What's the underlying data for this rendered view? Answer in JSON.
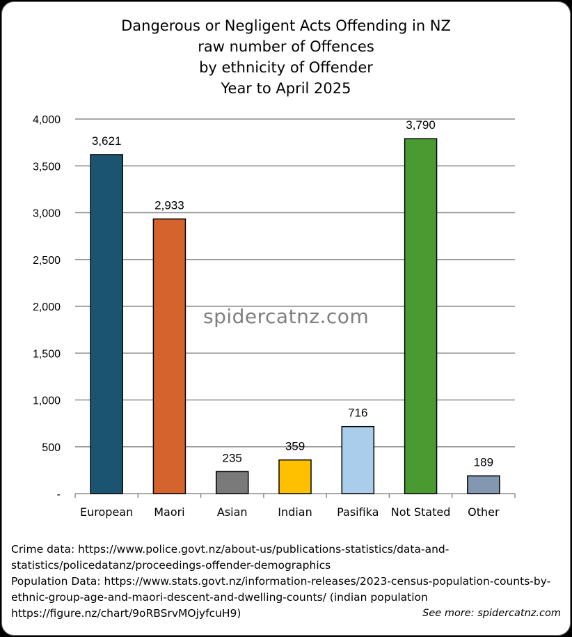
{
  "title_lines": [
    "Dangerous or Negligent Acts Offending in NZ",
    "raw number of Offences",
    "by ethnicity of Offender",
    "Year to April 2025"
  ],
  "watermark": "spidercatnz.com",
  "footer_lines": [
    "Crime data: https://www.police.govt.nz/about-us/publications-statistics/data-and-",
    "statistics/policedatanz/proceedings-offender-demographics",
    "Population Data: https://www.stats.govt.nz/information-releases/2023-census-population-counts-by-",
    "ethnic-group-age-and-maori-descent-and-dwelling-counts/ (indian population",
    "https://figure.nz/chart/9oRBSrvMOjyfcuH9)"
  ],
  "see_more": "See more: spidercatnz.com",
  "chart_data": {
    "type": "bar",
    "title": "Dangerous or Negligent Acts Offending in NZ raw number of Offences by ethnicity of Offender Year to April 2025",
    "categories": [
      "European",
      "Maori",
      "Asian",
      "Indian",
      "Pasifika",
      "Not Stated",
      "Other"
    ],
    "values": [
      3621,
      2933,
      235,
      359,
      716,
      3790,
      189
    ],
    "data_labels": [
      "3,621",
      "2,933",
      "235",
      "359",
      "716",
      "3,790",
      "189"
    ],
    "colors": [
      "#1a5470",
      "#d4632e",
      "#7a7a7a",
      "#ffc000",
      "#a9cdeb",
      "#4a9a32",
      "#8497b0"
    ],
    "ylim": [
      0,
      4000
    ],
    "yticks": [
      0,
      500,
      1000,
      1500,
      2000,
      2500,
      3000,
      3500,
      4000
    ],
    "ytick_labels": [
      "-",
      "500",
      "1,000",
      "1,500",
      "2,000",
      "2,500",
      "3,000",
      "3,500",
      "4,000"
    ],
    "xlabel": "",
    "ylabel": "",
    "grid": true,
    "legend": "none"
  }
}
